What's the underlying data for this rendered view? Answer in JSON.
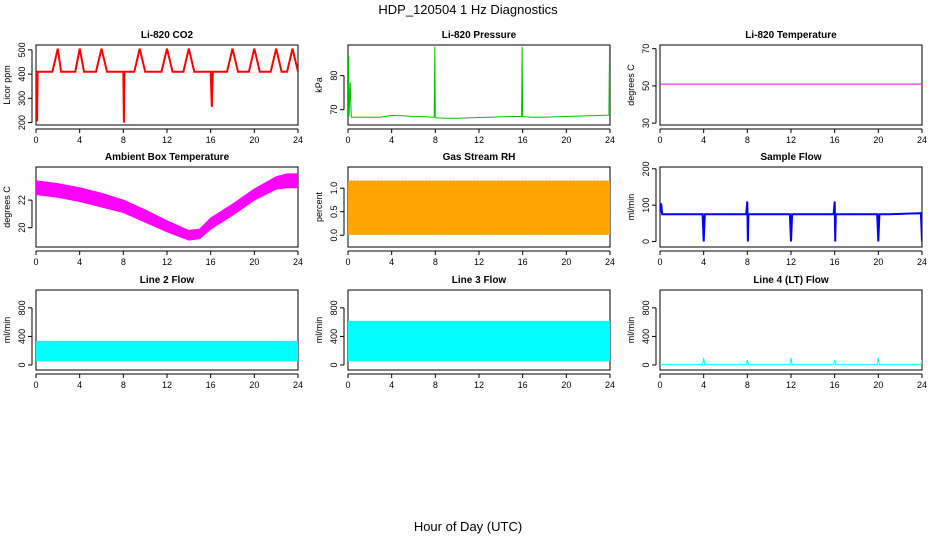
{
  "figure": {
    "title": "HDP_120504  1 Hz Diagnostics",
    "xlabel": "Hour of Day (UTC)"
  },
  "chart_data": [
    {
      "id": "co2",
      "type": "line",
      "title": "Li-820 CO2",
      "ylabel": "Licor ppm",
      "color": "#ff0000",
      "xlim": [
        0,
        24
      ],
      "xticks": [
        0,
        4,
        8,
        12,
        16,
        20,
        24
      ],
      "ylim": [
        190,
        520
      ],
      "yticks": [
        200,
        300,
        400,
        500
      ],
      "series": [
        {
          "x": [
            0,
            0.1,
            0.15,
            0.2,
            0.3,
            0.6,
            1.0,
            1.5,
            2.0,
            2.3,
            2.8,
            3.2,
            3.6,
            4.0,
            4.4,
            5.0,
            5.5,
            6.0,
            6.5,
            7.0,
            7.5,
            8.0,
            8.05,
            8.1,
            8.5,
            9.0,
            9.5,
            10.0,
            10.5,
            11.0,
            11.5,
            12.0,
            12.5,
            13.0,
            13.5,
            14.0,
            14.5,
            15.0,
            15.5,
            16.0,
            16.1,
            16.2,
            16.5,
            17.0,
            17.5,
            18.0,
            18.5,
            19.0,
            19.5,
            20.0,
            20.5,
            21.0,
            21.5,
            22.0,
            22.5,
            23.0,
            23.5,
            24.0
          ],
          "y": [
            410,
            205,
            410,
            410,
            410,
            410,
            410,
            410,
            505,
            410,
            410,
            410,
            410,
            505,
            410,
            410,
            410,
            505,
            410,
            410,
            410,
            410,
            200,
            410,
            410,
            410,
            505,
            410,
            410,
            410,
            410,
            505,
            410,
            410,
            410,
            505,
            410,
            410,
            410,
            410,
            265,
            410,
            410,
            410,
            410,
            505,
            410,
            410,
            410,
            505,
            410,
            410,
            410,
            505,
            410,
            410,
            505,
            410
          ]
        }
      ]
    },
    {
      "id": "pressure",
      "type": "line",
      "title": "Li-820 Pressure",
      "ylabel": "kPa",
      "color": "#00c000",
      "xlim": [
        0,
        24
      ],
      "xticks": [
        0,
        4,
        8,
        12,
        16,
        20,
        24
      ],
      "ylim": [
        65.5,
        89
      ],
      "yticks": [
        70,
        80
      ],
      "series": [
        {
          "x": [
            0,
            0.05,
            0.1,
            0.2,
            0.3,
            1.0,
            2.0,
            3.0,
            3.8,
            4.0,
            5.0,
            6.0,
            7.0,
            7.9,
            7.95,
            8.0,
            8.1,
            9.0,
            10.0,
            11.0,
            12.0,
            13.0,
            14.0,
            15.0,
            15.9,
            15.95,
            16.0,
            16.1,
            17.0,
            18.0,
            19.0,
            20.0,
            21.0,
            22.0,
            23.0,
            23.9,
            23.95,
            24.0
          ],
          "y": [
            68,
            86,
            68,
            78,
            67.8,
            67.8,
            67.8,
            67.8,
            68.2,
            68.3,
            68.2,
            68,
            67.9,
            67.8,
            88.5,
            67.8,
            67.6,
            67.5,
            67.5,
            67.6,
            67.7,
            67.8,
            67.9,
            68,
            68,
            88.5,
            68,
            67.9,
            67.8,
            67.8,
            67.9,
            68,
            68.1,
            68.2,
            68.3,
            68.4,
            88.5,
            68.4
          ]
        }
      ]
    },
    {
      "id": "licor_temp",
      "type": "line",
      "title": "Li-820 Temperature",
      "ylabel": "degrees C",
      "color": "#ff00ff",
      "xlim": [
        0,
        24
      ],
      "xticks": [
        0,
        4,
        8,
        12,
        16,
        20,
        24
      ],
      "ylim": [
        29,
        72
      ],
      "yticks": [
        30,
        50,
        70
      ],
      "series": [
        {
          "x": [
            0,
            24
          ],
          "y": [
            51,
            51
          ]
        }
      ]
    },
    {
      "id": "box_temp",
      "type": "area",
      "title": "Ambient Box Temperature",
      "ylabel": "degrees C",
      "color": "#ff00ff",
      "xlim": [
        0,
        24
      ],
      "xticks": [
        0,
        4,
        8,
        12,
        16,
        20,
        24
      ],
      "ylim": [
        18.6,
        24.4
      ],
      "yticks": [
        20,
        22
      ],
      "series": [
        {
          "name": "",
          "x": [
            0,
            2,
            4,
            6,
            8,
            10,
            12,
            14,
            15,
            16,
            18,
            20,
            22,
            23,
            24
          ],
          "y": [
            23.4,
            23.2,
            22.9,
            22.5,
            22.0,
            21.3,
            20.5,
            19.8,
            19.9,
            20.7,
            21.7,
            22.8,
            23.7,
            23.9,
            23.9
          ]
        },
        {
          "name": "",
          "x": [
            0,
            2,
            4,
            6,
            8,
            10,
            12,
            14,
            15,
            16,
            18,
            20,
            22,
            23,
            24
          ],
          "y": [
            22.4,
            22.2,
            21.9,
            21.5,
            21.1,
            20.4,
            19.7,
            19.1,
            19.2,
            19.9,
            20.9,
            22.0,
            22.8,
            22.9,
            22.9
          ]
        }
      ]
    },
    {
      "id": "rh",
      "type": "area",
      "title": "Gas Stream RH",
      "ylabel": "percent",
      "color": "#ffa500",
      "xlim": [
        0,
        24
      ],
      "xticks": [
        0,
        4,
        8,
        12,
        16,
        20,
        24
      ],
      "ylim": [
        -0.25,
        1.45
      ],
      "yticks": [
        0.0,
        0.5,
        1.0
      ],
      "yticklabels": [
        "0.0",
        "0.5",
        "1.0"
      ],
      "series": [
        {
          "name": "",
          "x": [
            0,
            24
          ],
          "y": [
            1.15,
            1.15
          ]
        },
        {
          "name": "",
          "x": [
            0,
            24
          ],
          "y": [
            0.02,
            0.02
          ]
        }
      ]
    },
    {
      "id": "sample_flow",
      "type": "line",
      "title": "Sample Flow",
      "ylabel": "ml/min",
      "color": "#0000ff",
      "xlim": [
        0,
        24
      ],
      "xticks": [
        0,
        4,
        8,
        12,
        16,
        20,
        24
      ],
      "ylim": [
        -15,
        205
      ],
      "yticks": [
        0,
        100,
        200
      ],
      "series": [
        {
          "x": [
            0,
            0.1,
            0.2,
            1.0,
            2.0,
            3.0,
            3.9,
            4.0,
            4.1,
            5.0,
            6.0,
            7.0,
            7.9,
            8.0,
            8.05,
            8.1,
            9.0,
            10.0,
            11.0,
            11.9,
            12.0,
            12.1,
            13.0,
            14.0,
            15.0,
            15.9,
            16.0,
            16.05,
            16.1,
            17.0,
            18.0,
            19.0,
            19.9,
            20.0,
            20.1,
            21.0,
            22.0,
            23.0,
            23.9,
            24.0
          ],
          "y": [
            80,
            105,
            75,
            75,
            75,
            75,
            75,
            0,
            75,
            75,
            75,
            75,
            75,
            110,
            0,
            75,
            75,
            75,
            75,
            75,
            0,
            75,
            75,
            75,
            75,
            75,
            110,
            0,
            75,
            75,
            75,
            75,
            75,
            0,
            75,
            75,
            76,
            77,
            78,
            0
          ]
        }
      ]
    },
    {
      "id": "line2_flow",
      "type": "area",
      "title": "Line 2 Flow",
      "ylabel": "ml/min",
      "color": "#00ffff",
      "xlim": [
        0,
        24
      ],
      "xticks": [
        0,
        4,
        8,
        12,
        16,
        20,
        24
      ],
      "ylim": [
        -70,
        1050
      ],
      "yticks": [
        0,
        400,
        800
      ],
      "series": [
        {
          "name": "",
          "x": [
            0,
            24
          ],
          "y": [
            330,
            330
          ]
        },
        {
          "name": "",
          "x": [
            0,
            24
          ],
          "y": [
            60,
            60
          ]
        }
      ]
    },
    {
      "id": "line3_flow",
      "type": "area",
      "title": "Line 3 Flow",
      "ylabel": "ml/min",
      "color": "#00ffff",
      "xlim": [
        0,
        24
      ],
      "xticks": [
        0,
        4,
        8,
        12,
        16,
        20,
        24
      ],
      "ylim": [
        -70,
        1050
      ],
      "yticks": [
        0,
        400,
        800
      ],
      "series": [
        {
          "name": "",
          "x": [
            0,
            24
          ],
          "y": [
            610,
            610
          ]
        },
        {
          "name": "",
          "x": [
            0,
            24
          ],
          "y": [
            60,
            60
          ]
        }
      ]
    },
    {
      "id": "line4_flow",
      "type": "line",
      "title": "Line 4 (LT) Flow",
      "ylabel": "ml/min",
      "color": "#00ffff",
      "xlim": [
        0,
        24
      ],
      "xticks": [
        0,
        4,
        8,
        12,
        16,
        20,
        24
      ],
      "ylim": [
        -70,
        1050
      ],
      "yticks": [
        0,
        400,
        800
      ],
      "series": [
        {
          "x": [
            0,
            3.9,
            4.0,
            4.1,
            7.9,
            8.0,
            8.1,
            11.9,
            12.0,
            12.1,
            15.9,
            16.0,
            16.1,
            19.9,
            20.0,
            20.1,
            23.9,
            24.0,
            24.0
          ],
          "y": [
            5,
            5,
            100,
            5,
            5,
            70,
            5,
            5,
            100,
            5,
            5,
            70,
            5,
            5,
            100,
            5,
            5,
            70,
            5
          ]
        }
      ]
    }
  ]
}
